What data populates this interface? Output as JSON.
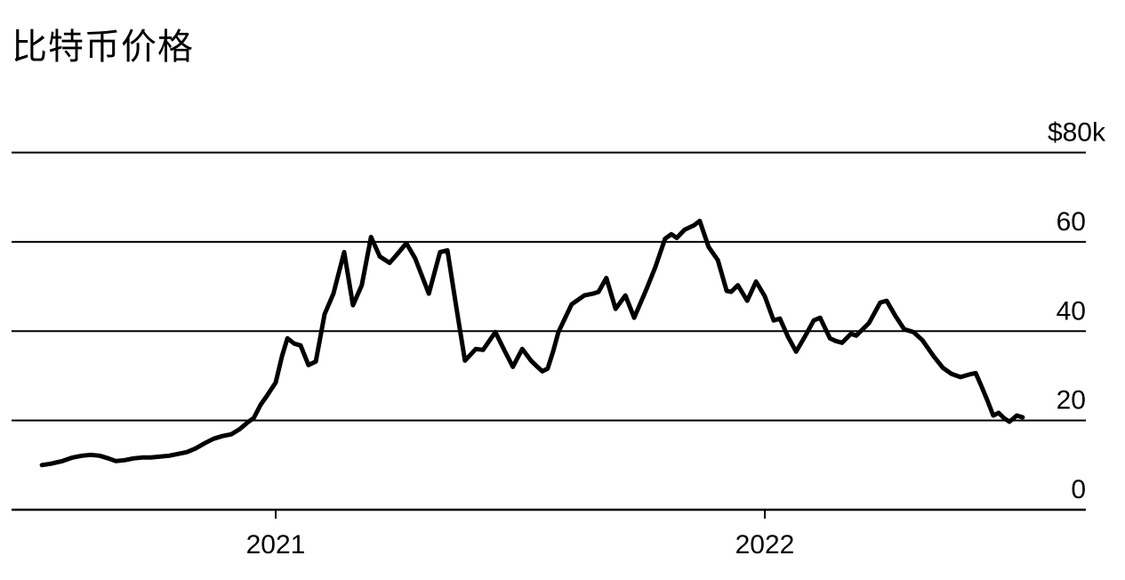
{
  "page": {
    "title": "比特币价格"
  },
  "colors": {
    "background": "#ffffff",
    "line": "#000000",
    "grid": "#000000",
    "text": "#000000"
  },
  "chart_data": {
    "type": "line",
    "title": "比特币价格",
    "series_name": "比特币价格",
    "xlabel": "",
    "ylabel": "",
    "unit": "USD (thousands)",
    "grid": true,
    "legend_position": "none",
    "ylim": [
      0,
      80
    ],
    "xlim": [
      2020.46,
      2022.657
    ],
    "y_ticks": [
      {
        "value": 80,
        "label": "$80k"
      },
      {
        "value": 60,
        "label": "60"
      },
      {
        "value": 40,
        "label": "40"
      },
      {
        "value": 20,
        "label": "20"
      },
      {
        "value": 0,
        "label": "0"
      }
    ],
    "x_ticks": [
      {
        "value": 2021,
        "label": "2021"
      },
      {
        "value": 2022,
        "label": "2022"
      }
    ],
    "x": [
      2020.522,
      2020.54,
      2020.564,
      2020.585,
      2020.604,
      2020.622,
      2020.64,
      2020.658,
      2020.673,
      2020.691,
      2020.709,
      2020.727,
      2020.745,
      2020.764,
      2020.782,
      2020.8,
      2020.818,
      2020.836,
      2020.855,
      2020.873,
      2020.891,
      2020.909,
      2020.927,
      2020.942,
      2020.955,
      2020.969,
      2020.982,
      2021.0,
      2021.013,
      2021.024,
      2021.038,
      2021.051,
      2021.067,
      2021.082,
      2021.1,
      2021.118,
      2021.14,
      2021.158,
      2021.176,
      2021.195,
      2021.213,
      2021.233,
      2021.249,
      2021.267,
      2021.285,
      2021.313,
      2021.336,
      2021.351,
      2021.369,
      2021.387,
      2021.409,
      2021.424,
      2021.449,
      2021.467,
      2021.485,
      2021.504,
      2021.522,
      2021.535,
      2021.545,
      2021.556,
      2021.567,
      2021.578,
      2021.605,
      2021.631,
      2021.649,
      2021.66,
      2021.676,
      2021.695,
      2021.715,
      2021.733,
      2021.758,
      2021.776,
      2021.796,
      2021.809,
      2021.82,
      2021.836,
      2021.855,
      2021.867,
      2021.885,
      2021.904,
      2021.922,
      2021.931,
      2021.945,
      2021.964,
      2021.982,
      2022.0,
      2022.018,
      2022.031,
      2022.047,
      2022.064,
      2022.082,
      2022.1,
      2022.113,
      2022.133,
      2022.145,
      2022.158,
      2022.176,
      2022.187,
      2022.213,
      2022.236,
      2022.249,
      2022.267,
      2022.285,
      2022.304,
      2022.322,
      2022.345,
      2022.364,
      2022.382,
      2022.4,
      2022.422,
      2022.431,
      2022.442,
      2022.455,
      2022.467,
      2022.478,
      2022.489,
      2022.5,
      2022.515,
      2022.527
    ],
    "values": [
      10.0,
      10.3,
      10.9,
      11.7,
      12.1,
      12.3,
      12.1,
      11.5,
      10.9,
      11.1,
      11.5,
      11.7,
      11.7,
      11.9,
      12.1,
      12.5,
      12.9,
      13.7,
      14.9,
      15.9,
      16.5,
      16.9,
      18.1,
      19.5,
      20.5,
      23.5,
      25.5,
      28.5,
      34.4,
      38.4,
      37.2,
      36.8,
      32.4,
      33.2,
      43.8,
      48.4,
      57.7,
      45.8,
      50.3,
      61.1,
      56.7,
      55.3,
      57.3,
      59.7,
      56.3,
      48.4,
      57.7,
      58.1,
      45.6,
      33.4,
      36.0,
      35.8,
      39.8,
      35.8,
      32.0,
      36.0,
      33.4,
      32.0,
      31.0,
      31.6,
      35.4,
      39.8,
      46.0,
      48.0,
      48.4,
      48.8,
      51.9,
      45.0,
      48.0,
      43.0,
      49.4,
      54.3,
      60.7,
      61.7,
      60.9,
      62.7,
      63.7,
      64.7,
      58.9,
      55.9,
      49.0,
      48.8,
      50.3,
      46.8,
      51.1,
      47.8,
      42.4,
      42.8,
      38.8,
      35.4,
      38.8,
      42.4,
      43.0,
      38.4,
      37.8,
      37.4,
      39.4,
      39.0,
      41.8,
      46.4,
      46.8,
      43.4,
      40.4,
      39.8,
      38.0,
      34.4,
      31.8,
      30.4,
      29.7,
      30.4,
      30.6,
      27.9,
      24.5,
      21.1,
      21.7,
      20.5,
      19.7,
      21.1,
      20.7
    ]
  }
}
